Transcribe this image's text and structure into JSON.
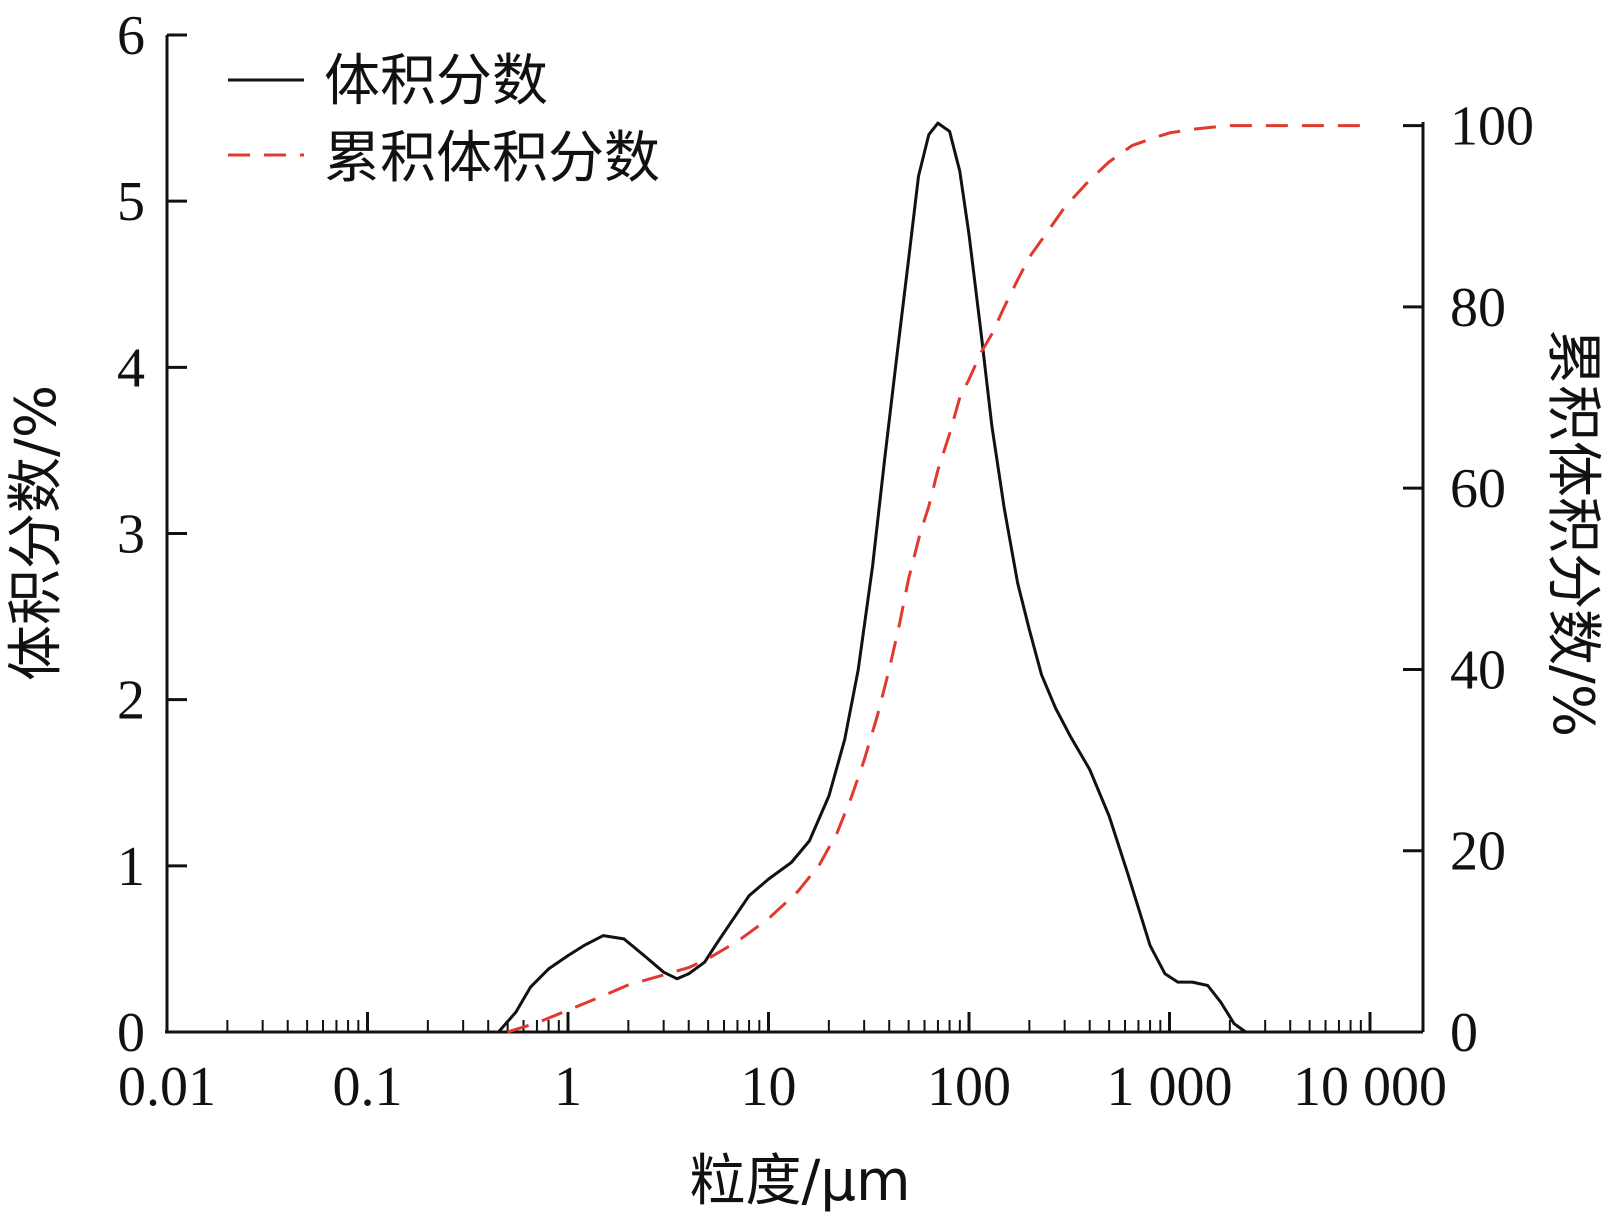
{
  "chart_data": {
    "type": "line",
    "xlabel": "粒度/μm",
    "ylabel_left": "体积分数/%",
    "ylabel_right": "累积体积分数/%",
    "x_scale": "log",
    "xlim": [
      0.01,
      10000
    ],
    "ylim_left": [
      0,
      6
    ],
    "ylim_right": [
      0,
      110
    ],
    "x_ticks": [
      0.01,
      0.1,
      1,
      10,
      100,
      1000,
      10000
    ],
    "x_tick_labels": [
      "0.01",
      "0.1",
      "1",
      "10",
      "100",
      "1 000",
      "10 000"
    ],
    "y_left_ticks": [
      0,
      1,
      2,
      3,
      4,
      5,
      6
    ],
    "y_left_tick_labels": [
      "0",
      "1",
      "2",
      "3",
      "4",
      "5",
      "6"
    ],
    "y_right_ticks": [
      0,
      20,
      40,
      60,
      80,
      100
    ],
    "y_right_tick_labels": [
      "0",
      "20",
      "40",
      "60",
      "80",
      "100"
    ],
    "grid": false,
    "legend": "top-left",
    "series": [
      {
        "name": "体积分数",
        "axis": "left",
        "style": "solid",
        "color": "#111111",
        "x": [
          0.45,
          0.55,
          0.65,
          0.8,
          1.0,
          1.2,
          1.5,
          1.9,
          2.4,
          3.0,
          3.5,
          4.0,
          4.8,
          5.5,
          6.5,
          8.0,
          10,
          13,
          16,
          20,
          24,
          28,
          33,
          38,
          44,
          50,
          56,
          63,
          70,
          80,
          90,
          100,
          115,
          130,
          150,
          175,
          200,
          230,
          270,
          320,
          400,
          500,
          620,
          800,
          950,
          1100,
          1300,
          1550,
          1800,
          2100,
          2400
        ],
        "y": [
          0.0,
          0.12,
          0.27,
          0.38,
          0.46,
          0.52,
          0.58,
          0.56,
          0.46,
          0.36,
          0.32,
          0.35,
          0.42,
          0.53,
          0.66,
          0.82,
          0.92,
          1.02,
          1.15,
          1.42,
          1.76,
          2.18,
          2.8,
          3.45,
          4.1,
          4.65,
          5.15,
          5.4,
          5.47,
          5.42,
          5.18,
          4.8,
          4.2,
          3.65,
          3.15,
          2.7,
          2.42,
          2.15,
          1.95,
          1.78,
          1.58,
          1.3,
          0.95,
          0.52,
          0.35,
          0.3,
          0.3,
          0.28,
          0.18,
          0.05,
          0.0
        ]
      },
      {
        "name": "累积体积分数",
        "axis": "right",
        "style": "dashed",
        "color": "#e03a2f",
        "x": [
          0.5,
          0.7,
          1.0,
          1.5,
          2.0,
          3.0,
          4.0,
          5.0,
          7.0,
          10,
          14,
          18,
          22,
          26,
          30,
          35,
          40,
          45,
          50,
          57,
          63,
          70,
          80,
          90,
          100,
          115,
          130,
          150,
          175,
          200,
          250,
          300,
          400,
          500,
          650,
          800,
          1000,
          1300,
          1600,
          2000,
          3000,
          5000,
          10000
        ],
        "y": [
          0.0,
          1.0,
          2.4,
          4.0,
          5.2,
          6.3,
          7.1,
          8.1,
          10.0,
          12.5,
          15.5,
          18.5,
          22.0,
          26.0,
          30.0,
          35.0,
          40.0,
          45.0,
          50.0,
          55.0,
          58.0,
          62.0,
          66.0,
          70.0,
          72.0,
          75.0,
          77.0,
          80.0,
          83.0,
          85.5,
          88.5,
          91.0,
          94.0,
          96.0,
          97.8,
          98.5,
          99.2,
          99.6,
          99.8,
          100.0,
          100.0,
          100.0,
          100.0
        ]
      }
    ]
  }
}
